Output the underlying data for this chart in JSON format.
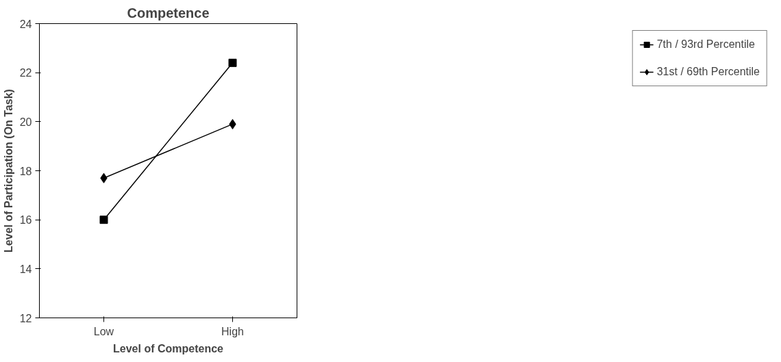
{
  "chart_data": {
    "type": "line",
    "title": "Competence",
    "xlabel": "Level of Competence",
    "ylabel": "Level of Participation (On Task)",
    "categories": [
      "Low",
      "High"
    ],
    "ylim": [
      12,
      24
    ],
    "yticks": [
      12,
      14,
      16,
      18,
      20,
      22,
      24
    ],
    "grid": false,
    "legend": "right",
    "line_style": "solid",
    "series": [
      {
        "name": "7th / 93rd Percentile",
        "color": "#000000",
        "marker": "square",
        "values": [
          16.0,
          22.4
        ]
      },
      {
        "name": "31st / 69th Percentile",
        "color": "#000000",
        "marker": "diamond",
        "values": [
          17.7,
          19.9
        ]
      }
    ]
  }
}
